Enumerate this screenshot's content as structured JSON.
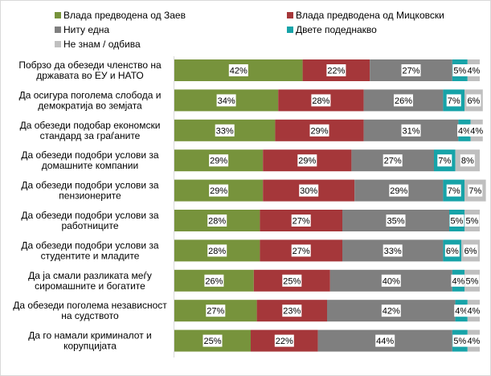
{
  "chart_data": {
    "type": "bar",
    "orientation": "horizontal",
    "stacked": true,
    "title": "",
    "xlabel": "",
    "ylabel": "",
    "xlim": [
      0,
      100
    ],
    "grid": false,
    "legend_position": "top",
    "categories": [
      "Побрзо да обезеди членство на државата во ЕУ и НАТО",
      "Да осигура поголема слобода и демократија во земјата",
      "Да обезеди  подобар економски стандард за граѓаните",
      "Да обезеди подобри услови за домашните компании",
      "Да обезеди подобри услови за пензионерите",
      "Да обезеди подобри услови за работниците",
      "Да обезеди подобри услови за студентите и младите",
      "Да ја смали разликата меѓу сиромашните и богатите",
      "Да обезеди поголема независност на судството",
      "Да го намали криминалот и корупцијата"
    ],
    "series": [
      {
        "name": "Влада предводена од Заев",
        "color": "#77933c",
        "values": [
          42,
          34,
          33,
          29,
          29,
          28,
          28,
          26,
          27,
          25
        ]
      },
      {
        "name": "Влада предводена од Мицковски",
        "color": "#a5373a",
        "values": [
          22,
          28,
          29,
          29,
          30,
          27,
          27,
          25,
          23,
          22
        ]
      },
      {
        "name": "Ниту една",
        "color": "#7f7f7f",
        "values": [
          27,
          26,
          31,
          27,
          29,
          35,
          33,
          40,
          42,
          44
        ]
      },
      {
        "name": "Двете подеднакво",
        "color": "#17a3a8",
        "values": [
          5,
          7,
          4,
          7,
          7,
          5,
          6,
          4,
          4,
          5
        ]
      },
      {
        "name": "Не знам / одбива",
        "color": "#bfbfbf",
        "values": [
          4,
          6,
          4,
          8,
          7,
          5,
          6,
          5,
          4,
          4
        ]
      }
    ],
    "value_suffix": "%"
  }
}
